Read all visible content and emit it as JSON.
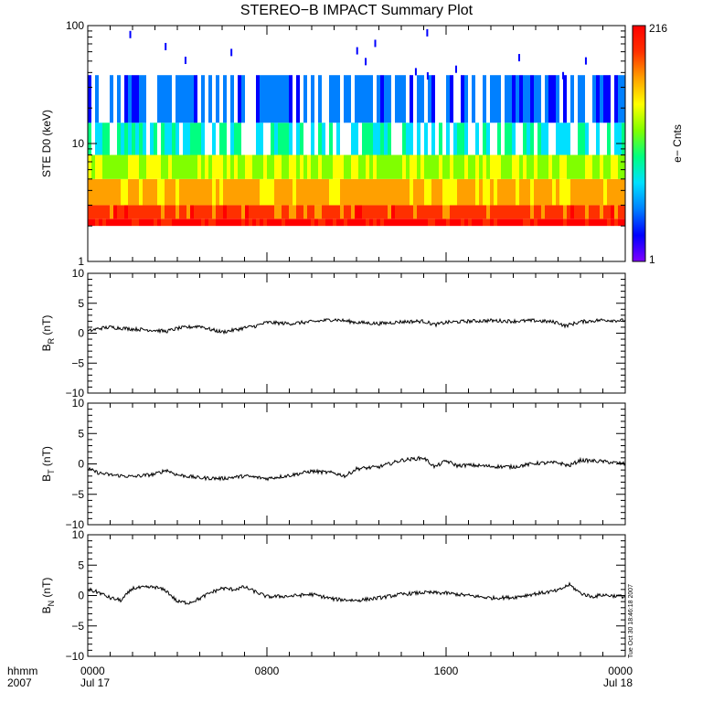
{
  "title": "STEREO−B IMPACT Summary Plot",
  "stamp": "Tue Oct 30 18:46:18 2007",
  "time_axis": {
    "label_line1": "hhmm",
    "label_line2": "2007",
    "ticks": [
      {
        "hour": 0,
        "line1": "0000",
        "line2": "Jul 17"
      },
      {
        "hour": 8,
        "line1": "0800",
        "line2": ""
      },
      {
        "hour": 16,
        "line1": "1600",
        "line2": ""
      },
      {
        "hour": 24,
        "line1": "0000",
        "line2": "Jul 18"
      }
    ],
    "range_hours": [
      0,
      24
    ]
  },
  "colorbar": {
    "label": "e− Cnts",
    "max_label": "216",
    "min_label": "1",
    "min": 1,
    "max": 216,
    "colors": [
      "#7f00ff",
      "#0000ff",
      "#0080ff",
      "#00e0ff",
      "#00ff80",
      "#80ff00",
      "#ffff00",
      "#ffa000",
      "#ff3000",
      "#ff0000"
    ]
  },
  "chart_data": [
    {
      "type": "heatmap",
      "ylabel": "STE D0 (keV)",
      "yscale": "log",
      "ylim": [
        1,
        100
      ],
      "yticks": [
        "1",
        "10",
        "100"
      ],
      "xlim_hours": [
        0,
        24
      ],
      "description_bands": [
        {
          "energy_keV": [
            2.0,
            2.3
          ],
          "counts": 200
        },
        {
          "energy_keV": [
            2.3,
            3.0
          ],
          "counts": 120
        },
        {
          "energy_keV": [
            3.0,
            5.0
          ],
          "counts": 60
        },
        {
          "energy_keV": [
            5.0,
            8.0
          ],
          "counts": 25
        },
        {
          "energy_keV": [
            8.0,
            15.0
          ],
          "counts": 8
        },
        {
          "energy_keV": [
            15.0,
            38.0
          ],
          "counts": 3
        }
      ]
    },
    {
      "type": "line",
      "ylabel": "B",
      "ylabel_sub": "R",
      "ylabel_unit": "(nT)",
      "ylim": [
        -10,
        10
      ],
      "yticks": [
        "10",
        "5",
        "0",
        "−5",
        "−10"
      ],
      "x_hours": [
        0,
        0.5,
        1,
        2,
        3,
        3.5,
        4,
        5,
        5.5,
        6,
        6.5,
        7,
        7.5,
        8,
        9,
        10,
        11,
        12,
        13,
        14,
        15,
        15.5,
        16,
        17,
        18,
        19,
        20,
        21,
        21.3,
        22,
        23,
        24
      ],
      "values": [
        0.3,
        0.8,
        1.0,
        0.7,
        0.5,
        0.3,
        0.8,
        1.2,
        0.6,
        0.2,
        0.5,
        0.9,
        1.2,
        1.8,
        1.6,
        1.9,
        2.3,
        1.8,
        1.6,
        1.9,
        2.0,
        1.4,
        1.8,
        2.0,
        2.1,
        2.0,
        2.1,
        1.8,
        1.2,
        1.9,
        2.2,
        2.1
      ]
    },
    {
      "type": "line",
      "ylabel": "B",
      "ylabel_sub": "T",
      "ylabel_unit": "(nT)",
      "ylim": [
        -10,
        10
      ],
      "yticks": [
        "10",
        "5",
        "0",
        "−5",
        "−10"
      ],
      "x_hours": [
        0,
        0.5,
        1,
        2,
        3,
        3.5,
        4,
        5,
        6,
        7,
        8,
        9,
        10,
        11,
        11.5,
        12,
        13,
        14,
        15,
        15.5,
        16,
        16.5,
        17,
        18,
        19,
        20,
        21,
        21.5,
        22,
        23,
        24
      ],
      "values": [
        -0.8,
        -1.5,
        -1.8,
        -2.1,
        -1.7,
        -1.0,
        -1.8,
        -2.3,
        -2.4,
        -2.0,
        -2.4,
        -1.9,
        -1.2,
        -1.5,
        -2.0,
        -0.8,
        -0.5,
        0.6,
        1.0,
        -0.5,
        0.5,
        -0.3,
        -0.2,
        -0.4,
        -0.5,
        0.1,
        0.2,
        -0.3,
        0.6,
        0.4,
        0.0
      ]
    },
    {
      "type": "line",
      "ylabel": "B",
      "ylabel_sub": "N",
      "ylabel_unit": "(nT)",
      "ylim": [
        -10,
        10
      ],
      "yticks": [
        "10",
        "5",
        "0",
        "−5",
        "−10"
      ],
      "x_hours": [
        0,
        0.5,
        1,
        1.5,
        2,
        3,
        3.5,
        4,
        4.5,
        5,
        5.5,
        6,
        6.5,
        7,
        8,
        9,
        10,
        11,
        12,
        13,
        14,
        15,
        16,
        17,
        18,
        19,
        20,
        21,
        21.5,
        22,
        22.5,
        23,
        24
      ],
      "values": [
        1.0,
        0.5,
        -0.4,
        -0.8,
        1.2,
        1.4,
        0.8,
        -1.0,
        -1.2,
        -0.5,
        0.5,
        1.2,
        1.0,
        1.4,
        -0.2,
        -0.1,
        0.2,
        -0.6,
        -0.8,
        -0.4,
        0.2,
        0.5,
        0.4,
        0.0,
        -0.4,
        -0.3,
        0.3,
        0.8,
        1.8,
        0.4,
        -0.2,
        0.1,
        -0.2
      ]
    }
  ]
}
